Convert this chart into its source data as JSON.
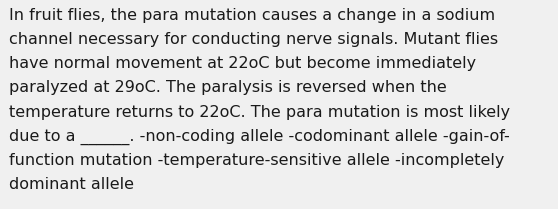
{
  "text": "In fruit flies, the para mutation causes a change in a sodium channel necessary for conducting nerve signals. Mutant flies have normal movement at 22oC but become immediately paralyzed at 29oC. The paralysis is reversed when the temperature returns to 22oC. The para mutation is most likely due to a ______. -non-coding allele -codominant allele -gain-of-function mutation -temperature-sensitive allele -incompletely dominant allele",
  "background_color": "#f0f0f0",
  "text_color": "#1a1a1a",
  "font_size": 11.5,
  "line1": "In fruit flies, the para mutation causes a change in a sodium",
  "line2": "channel necessary for conducting nerve signals. Mutant flies",
  "line3": "have normal movement at 22oC but become immediately",
  "line4": "paralyzed at 29oC. The paralysis is reversed when the",
  "line5": "temperature returns to 22oC. The para mutation is most likely",
  "line6": "due to a ______. -non-coding allele -codominant allele -gain-of-",
  "line7": "function mutation -temperature-sensitive allele -incompletely",
  "line8": "dominant allele"
}
